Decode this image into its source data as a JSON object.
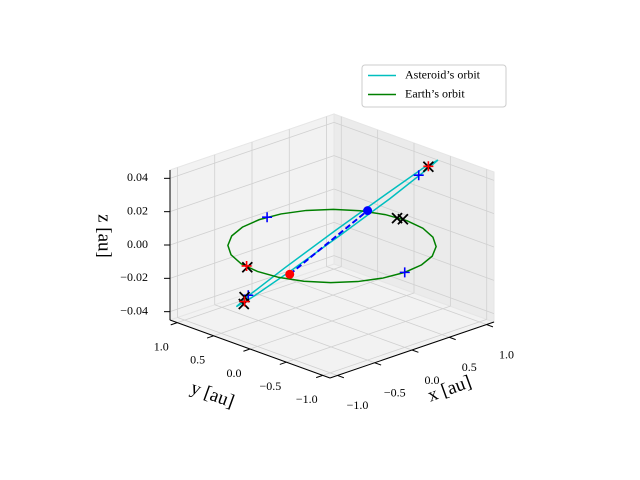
{
  "chart_data": {
    "type": "line3d",
    "xlabel": "x [au]",
    "ylabel": "y [au]",
    "zlabel": "z [au]",
    "xlim": [
      -1.1,
      1.1
    ],
    "ylim": [
      -1.1,
      1.1
    ],
    "zlim": [
      -0.045,
      0.045
    ],
    "xticks": [
      {
        "value": -1,
        "label": "−1.0"
      },
      {
        "value": -0.5,
        "label": "−0.5"
      },
      {
        "value": 0,
        "label": "0.0"
      },
      {
        "value": 0.5,
        "label": "0.5"
      },
      {
        "value": 1,
        "label": "1.0"
      }
    ],
    "yticks": [
      {
        "value": -1,
        "label": "−1.0"
      },
      {
        "value": -0.5,
        "label": "−0.5"
      },
      {
        "value": 0,
        "label": "0.0"
      },
      {
        "value": 0.5,
        "label": "0.5"
      },
      {
        "value": 1,
        "label": "1.0"
      }
    ],
    "zticks": [
      {
        "value": -0.04,
        "label": "−0.04"
      },
      {
        "value": -0.02,
        "label": "−0.02"
      },
      {
        "value": 0,
        "label": "0.00"
      },
      {
        "value": 0.02,
        "label": "0.02"
      },
      {
        "value": 0.04,
        "label": "0.04"
      }
    ],
    "grid": true,
    "legend": "upper right",
    "series": [
      {
        "name": "Asteroid’s orbit",
        "color": "#00bfbf",
        "mode": "line",
        "x": [
          1.1,
          0.97,
          0.595,
          0.075,
          -0.45,
          -0.84,
          -0.99,
          -0.86,
          -0.485,
          0.035,
          0.56,
          0.95,
          1.1
        ],
        "y": [
          -0.33,
          -0.258,
          -0.12,
          0.045,
          0.194,
          0.288,
          0.3,
          0.228,
          0.09,
          -0.075,
          -0.225,
          -0.318,
          -0.33
        ],
        "z": [
          0.04,
          0.036,
          0.0235,
          0.007,
          -0.0095,
          -0.0216,
          -0.026,
          -0.0216,
          -0.0095,
          0.007,
          0.0235,
          0.036,
          0.04
        ]
      },
      {
        "name": "Earth’s orbit",
        "color": "#008000",
        "mode": "line",
        "x": [
          1,
          0.966,
          0.866,
          0.707,
          0.5,
          0.259,
          0,
          -0.259,
          -0.5,
          -0.707,
          -0.866,
          -0.966,
          -1,
          -0.966,
          -0.866,
          -0.707,
          -0.5,
          -0.259,
          0,
          0.259,
          0.5,
          0.707,
          0.866,
          0.966,
          1
        ],
        "y": [
          0,
          0.259,
          0.5,
          0.707,
          0.866,
          0.966,
          1,
          0.966,
          0.866,
          0.707,
          0.5,
          0.259,
          0,
          -0.259,
          -0.5,
          -0.707,
          -0.866,
          -0.966,
          -1,
          -0.966,
          -0.866,
          -0.707,
          -0.5,
          -0.259,
          0
        ],
        "z": [
          0,
          0,
          0,
          0,
          0,
          0,
          0,
          0,
          0,
          0,
          0,
          0,
          0,
          0,
          0,
          0,
          0,
          0,
          0,
          0,
          0,
          0,
          0,
          0,
          0
        ]
      },
      {
        "color": "#0000ff",
        "mode": "dashed",
        "x": [
          -0.45,
          0.38
        ],
        "y": [
          0.12,
          -0.1
        ],
        "z": [
          -0.012,
          0.017
        ]
      },
      {
        "color": "#0000ff",
        "mode": "marker",
        "marker": "+",
        "x": [
          0.1,
          0.0,
          0.9,
          -0.85
        ],
        "y": [
          0.995,
          -1.0,
          -0.27,
          0.28
        ],
        "z": [
          0,
          0,
          0.033,
          -0.021
        ]
      },
      {
        "color": "#000000",
        "mode": "marker",
        "marker": "x",
        "x": [
          -0.99,
          0.98,
          1.0,
          -0.92,
          -0.88,
          1.0
        ],
        "y": [
          0.15,
          0.11,
          0.05,
          0.27,
          0.3,
          -0.3
        ],
        "z": [
          0,
          0,
          0,
          -0.025,
          -0.022,
          0.037
        ]
      },
      {
        "color": "#ff0000",
        "mode": "marker",
        "marker": "+",
        "x": [
          1.01,
          -0.97,
          -0.9
        ],
        "y": [
          -0.29,
          0.18,
          0.28
        ],
        "z": [
          0.037,
          0,
          -0.024
        ]
      },
      {
        "color": "#ff0000",
        "mode": "marker",
        "marker": "o",
        "x": [
          -0.45
        ],
        "y": [
          0.12
        ],
        "z": [
          -0.012
        ]
      },
      {
        "color": "#0000ff",
        "mode": "marker",
        "marker": "o",
        "x": [
          0.38
        ],
        "y": [
          -0.1
        ],
        "z": [
          0.017
        ]
      }
    ]
  }
}
